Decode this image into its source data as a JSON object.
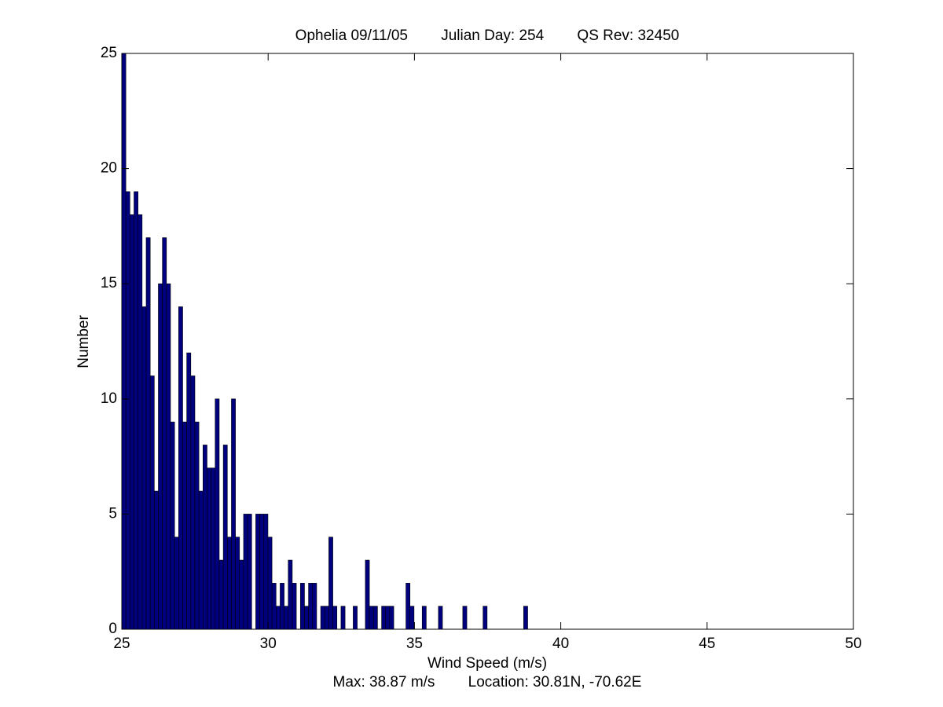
{
  "chart_data": {
    "type": "histogram",
    "title": "Ophelia 09/11/05        Julian Day: 254        QS Rev: 32450",
    "x_label": "Wind Speed (m/s)",
    "y_label": "Number",
    "annotation": "Max: 38.87 m/s        Location: 30.81N, -70.62E",
    "bins": [
      25.0,
      25.139,
      25.277,
      25.416,
      25.555,
      25.694,
      25.832,
      25.971,
      26.11,
      26.248,
      26.387,
      26.526,
      26.664,
      26.803,
      26.942,
      27.081,
      27.219,
      27.358,
      27.497,
      27.635,
      27.774,
      27.913,
      28.051,
      28.19,
      28.329,
      28.468,
      28.606,
      28.745,
      28.884,
      29.022,
      29.161,
      29.3,
      29.438,
      29.577,
      29.716,
      29.855,
      29.993,
      30.132,
      30.271,
      30.409,
      30.548,
      30.687,
      30.825,
      30.964,
      31.103,
      31.242,
      31.38,
      31.519,
      31.658,
      31.796,
      31.935,
      32.074,
      32.212,
      32.351,
      32.49,
      32.629,
      32.767,
      32.906,
      33.045,
      33.183,
      33.322,
      33.461,
      33.599,
      33.738,
      33.877,
      34.016,
      34.154,
      34.293,
      34.432,
      34.57,
      34.709,
      34.848,
      34.986,
      35.125,
      35.264,
      35.403,
      35.541,
      35.68,
      35.819,
      35.957,
      36.096,
      36.235,
      36.373,
      36.512,
      36.651,
      36.79,
      36.928,
      37.067,
      37.206,
      37.344,
      37.483,
      37.622,
      37.76,
      37.899,
      38.038,
      38.177,
      38.315,
      38.454,
      38.593,
      38.731,
      38.87
    ],
    "values": [
      25,
      19,
      18,
      19,
      18,
      14,
      17,
      11,
      6,
      15,
      17,
      15,
      9,
      4,
      14,
      9,
      12,
      11,
      9,
      6,
      8,
      7,
      7,
      10,
      3,
      8,
      4,
      10,
      4,
      3,
      5,
      5,
      0,
      5,
      5,
      5,
      4,
      2,
      1,
      2,
      1,
      3,
      2,
      0,
      2,
      1,
      2,
      2,
      0,
      1,
      1,
      4,
      1,
      0,
      1,
      0,
      0,
      1,
      0,
      0,
      3,
      1,
      1,
      0,
      1,
      1,
      1,
      0,
      0,
      0,
      2,
      1,
      0,
      0,
      1,
      0,
      0,
      0,
      1,
      0,
      0,
      0,
      0,
      0,
      1,
      0,
      0,
      0,
      0,
      1,
      0,
      0,
      0,
      0,
      0,
      0,
      0,
      0,
      0,
      1
    ],
    "color": "#00007f",
    "xlim": [
      25,
      50
    ],
    "xticks": [
      25,
      30,
      35,
      40,
      45,
      50
    ],
    "ylim": [
      0,
      25
    ],
    "yticks": [
      0,
      5,
      10,
      15,
      20,
      25
    ]
  }
}
